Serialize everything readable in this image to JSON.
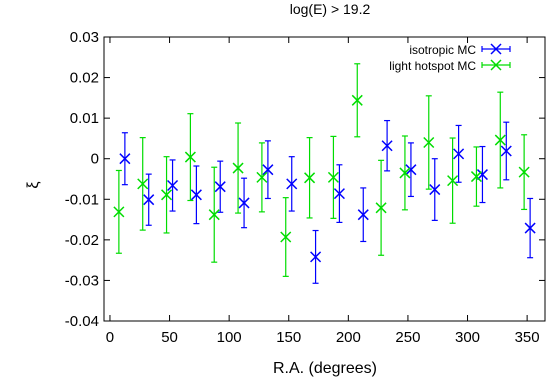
{
  "chart_data": {
    "type": "scatter",
    "title": "log(E) > 19.2",
    "xlabel": "R.A. (degrees)",
    "ylabel": "ξ",
    "xlim": [
      -5,
      365
    ],
    "ylim": [
      -0.04,
      0.03
    ],
    "xticks": [
      0,
      50,
      100,
      150,
      200,
      250,
      300,
      350
    ],
    "yticks": [
      -0.04,
      -0.03,
      -0.02,
      -0.01,
      0,
      0.01,
      0.02,
      0.03
    ],
    "ytick_labels": [
      "-0.04",
      "-0.03",
      "-0.02",
      "-0.01",
      "0",
      "0.01",
      "0.02",
      "0.03"
    ],
    "legend_position": "top-right",
    "grid": false,
    "series": [
      {
        "name": "isotropic MC",
        "color": "#0000ff",
        "x": [
          10,
          30,
          50,
          70,
          90,
          110,
          130,
          150,
          170,
          190,
          210,
          230,
          250,
          270,
          290,
          310,
          330,
          350
        ],
        "y": [
          0.0,
          -0.0101,
          -0.0066,
          -0.0089,
          -0.0069,
          -0.0109,
          -0.0027,
          -0.0062,
          -0.0242,
          -0.0086,
          -0.0138,
          0.0032,
          -0.0027,
          -0.0076,
          0.0012,
          -0.0039,
          0.0019,
          -0.0171
        ],
        "err": [
          0.0064,
          0.0063,
          0.0063,
          0.0071,
          0.0063,
          0.0061,
          0.0071,
          0.0067,
          0.0065,
          0.0071,
          0.0066,
          0.0062,
          0.0066,
          0.0076,
          0.007,
          0.0069,
          0.0071,
          0.0073
        ]
      },
      {
        "name": "light hotspot MC",
        "color": "#00dd00",
        "x": [
          10,
          30,
          50,
          70,
          90,
          110,
          130,
          150,
          170,
          190,
          210,
          230,
          250,
          270,
          290,
          310,
          330,
          350
        ],
        "y": [
          -0.0131,
          -0.0062,
          -0.0089,
          0.0004,
          -0.0138,
          -0.0023,
          -0.0046,
          -0.0193,
          -0.0047,
          -0.0046,
          0.0144,
          -0.0121,
          -0.0035,
          0.004,
          -0.0054,
          -0.0044,
          0.0046,
          -0.0033
        ],
        "err": [
          0.0102,
          0.0114,
          0.0094,
          0.0107,
          0.0117,
          0.0111,
          0.0085,
          0.0097,
          0.0099,
          0.0101,
          0.009,
          0.0117,
          0.0091,
          0.0115,
          0.0105,
          0.0073,
          0.0118,
          0.0092
        ]
      }
    ]
  }
}
